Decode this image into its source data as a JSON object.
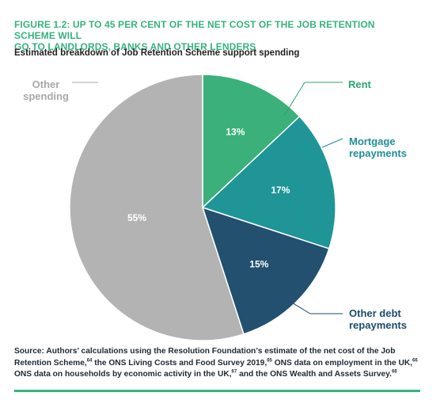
{
  "figure": {
    "title_line1": "FIGURE 1.2: UP TO 45 PER CENT OF THE NET COST OF THE JOB RETENTION SCHEME WILL",
    "title_line2": "GO TO LANDLORDS, BANKS AND OTHER LENDERS",
    "subtitle": "Estimated breakdown of Job Retention Scheme support spending"
  },
  "chart_data": {
    "type": "pie",
    "title": "Estimated breakdown of Job Retention Scheme support spending",
    "slices": [
      {
        "label_lines": [
          "Rent"
        ],
        "value": 13,
        "value_label": "13%",
        "color": "#3bb07a",
        "label_color": "#2ca56f"
      },
      {
        "label_lines": [
          "Mortgage",
          "repayments"
        ],
        "value": 17,
        "value_label": "17%",
        "color": "#1f9598",
        "label_color": "#1f8f96"
      },
      {
        "label_lines": [
          "Other debt",
          "repayments"
        ],
        "value": 15,
        "value_label": "15%",
        "color": "#22506e",
        "label_color": "#1d4c6a"
      },
      {
        "label_lines": [
          "Other",
          "spending"
        ],
        "value": 55,
        "value_label": "55%",
        "color": "#b3b3b3",
        "label_color": "#a8a8a8"
      }
    ],
    "start_angle_deg": 0,
    "direction": "clockwise"
  },
  "source": {
    "p1": "Source: Authors’ calculations using the Resolution Foundation’s estimate of the net cost of the Job Retention Scheme,",
    "n64": "64",
    "p2": " the ONS Living Costs and Food Survey 2019,",
    "n65": "65",
    "p3": " ONS data on employment in the UK,",
    "n66": "66",
    "p4": " ONS data on households by economic activity in the UK,",
    "n67": "67",
    "p5": " and the ONS Wealth and Assets Survey.",
    "n68": "68"
  },
  "colors": {
    "accent": "#36b37e"
  }
}
